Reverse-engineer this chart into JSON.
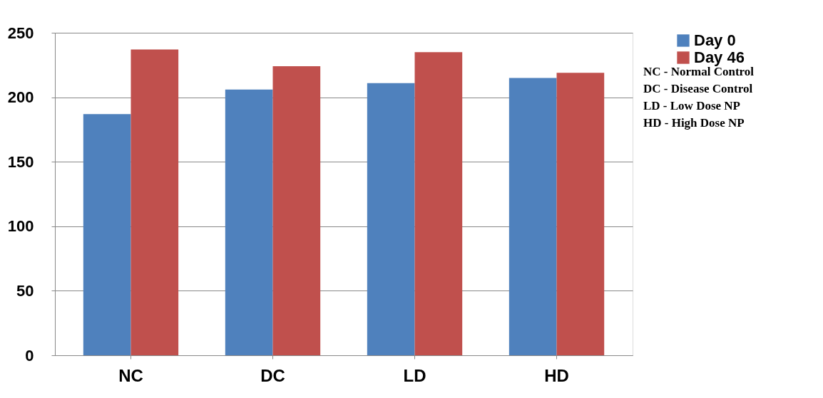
{
  "chart_data": {
    "type": "bar",
    "categories": [
      "NC",
      "DC",
      "LD",
      "HD"
    ],
    "series": [
      {
        "name": "Day 0",
        "color": "#4f81bd",
        "values": [
          187,
          206,
          211,
          215
        ]
      },
      {
        "name": "Day 46",
        "color": "#c0504d",
        "values": [
          237,
          224,
          235,
          219
        ]
      }
    ],
    "ylim": [
      0,
      250
    ],
    "yticks": [
      0,
      50,
      100,
      150,
      200,
      250
    ],
    "grid": "y",
    "legend": "right",
    "annotations": [
      "NC - Normal Control",
      "DC - Disease Control",
      "LD - Low Dose NP",
      "HD - High Dose NP"
    ]
  }
}
